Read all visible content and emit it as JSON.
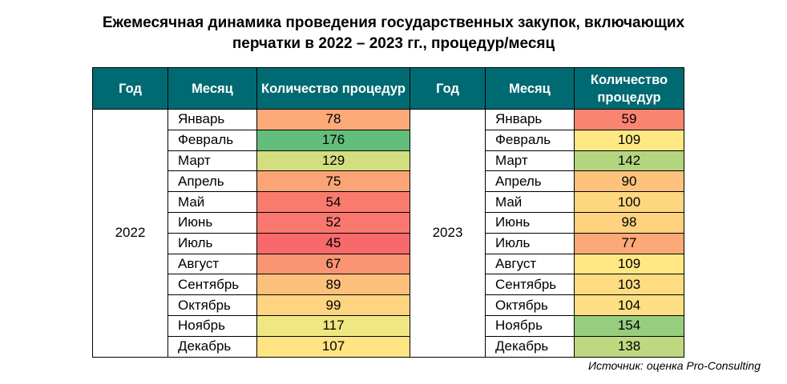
{
  "title": {
    "line1": "Ежемесячная динамика проведения государственных закупок, включающих",
    "line2": "перчатки в 2022 – 2023 гг., процедур/месяц"
  },
  "headers": {
    "year": "Год",
    "month": "Месяц",
    "count": "Количество процедур"
  },
  "source": "Источник: оценка Pro-Consulting",
  "color_scale": {
    "low": "#f8696b",
    "mid": "#ffeb84",
    "high": "#63be7b"
  },
  "chart_data": {
    "type": "table",
    "columns": [
      "Год",
      "Месяц",
      "Количество процедур"
    ],
    "groups": [
      {
        "year": "2022",
        "rows": [
          {
            "month": "Январь",
            "value": 78
          },
          {
            "month": "Февраль",
            "value": 176
          },
          {
            "month": "Март",
            "value": 129
          },
          {
            "month": "Апрель",
            "value": 75
          },
          {
            "month": "Май",
            "value": 54
          },
          {
            "month": "Июнь",
            "value": 52
          },
          {
            "month": "Июль",
            "value": 45
          },
          {
            "month": "Август",
            "value": 67
          },
          {
            "month": "Сентябрь",
            "value": 89
          },
          {
            "month": "Октябрь",
            "value": 99
          },
          {
            "month": "Ноябрь",
            "value": 117
          },
          {
            "month": "Декабрь",
            "value": 107
          }
        ]
      },
      {
        "year": "2023",
        "rows": [
          {
            "month": "Январь",
            "value": 59
          },
          {
            "month": "Февраль",
            "value": 109
          },
          {
            "month": "Март",
            "value": 142
          },
          {
            "month": "Апрель",
            "value": 90
          },
          {
            "month": "Май",
            "value": 100
          },
          {
            "month": "Июнь",
            "value": 98
          },
          {
            "month": "Июль",
            "value": 77
          },
          {
            "month": "Август",
            "value": 109
          },
          {
            "month": "Сентябрь",
            "value": 103
          },
          {
            "month": "Октябрь",
            "value": 104
          },
          {
            "month": "Ноябрь",
            "value": 154
          },
          {
            "month": "Декабрь",
            "value": 138
          }
        ]
      }
    ]
  }
}
